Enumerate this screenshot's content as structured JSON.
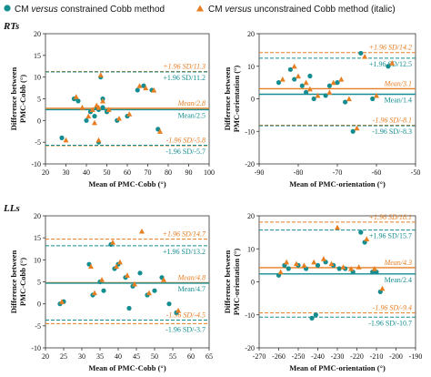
{
  "legend": {
    "teal": {
      "label": "CM versus constrained Cobb method",
      "parts": [
        "CM ",
        "versus",
        " constrained Cobb method"
      ]
    },
    "orange": {
      "label": "CM versus unconstrained Cobb method (italic)",
      "parts": [
        "CM ",
        "versus",
        " unconstrained Cobb method (italic)"
      ]
    }
  },
  "colors": {
    "teal": "#138d90",
    "orange": "#e67e22"
  },
  "chart_data": [
    {
      "type": "scatter",
      "group_label": "RTs",
      "xlabel": "Mean of PMC-Cobb (°)",
      "ylabel_lines": [
        "Difference between",
        "PMC-Cobb (°)"
      ],
      "xlim": [
        20,
        100
      ],
      "ylim": [
        -10,
        20
      ],
      "xticks": [
        "20",
        "30",
        "40",
        "50",
        "60",
        "70",
        "80",
        "90",
        "100"
      ],
      "yticks": [
        "-10",
        "-5",
        "0",
        "5",
        "10",
        "15",
        "20"
      ],
      "annotations": {
        "orange_upper": "+1.96 SD/11.3",
        "orange_mean": "Mean/2.8",
        "orange_lower": "-1.96 SD/-5.8",
        "teal_upper": "+1.96 SD/11.2",
        "teal_mean": "Mean/2.5",
        "teal_lower": "-1.96 SD/-5.7"
      },
      "lines": {
        "orange": {
          "upper": 11.3,
          "mean": 2.8,
          "lower": -5.8
        },
        "teal": {
          "upper": 11.2,
          "mean": 2.5,
          "lower": -5.7
        }
      },
      "series": [
        {
          "name": "CM versus constrained Cobb method",
          "color": "teal",
          "marker": "circle",
          "points": [
            [
              28,
              -4
            ],
            [
              34,
              5
            ],
            [
              36,
              4.5
            ],
            [
              40,
              0
            ],
            [
              42,
              2
            ],
            [
              44,
              1
            ],
            [
              45,
              3
            ],
            [
              46,
              2.5
            ],
            [
              47,
              10
            ],
            [
              48,
              5
            ],
            [
              46,
              -5
            ],
            [
              50,
              2
            ],
            [
              55,
              0
            ],
            [
              60,
              1
            ],
            [
              65,
              7
            ],
            [
              68,
              8
            ],
            [
              72,
              7
            ],
            [
              75,
              -2
            ],
            [
              48,
              3
            ]
          ]
        },
        {
          "name": "CM versus unconstrained Cobb method (italic)",
          "color": "orange",
          "marker": "triangle",
          "points": [
            [
              30,
              -4.5
            ],
            [
              35,
              5.5
            ],
            [
              38,
              3
            ],
            [
              41,
              1
            ],
            [
              43,
              2.5
            ],
            [
              45,
              3.5
            ],
            [
              46,
              3
            ],
            [
              47,
              10.5
            ],
            [
              48,
              4.5
            ],
            [
              46,
              -4.5
            ],
            [
              51,
              2.5
            ],
            [
              56,
              0.5
            ],
            [
              61,
              1.5
            ],
            [
              66,
              8
            ],
            [
              69,
              7.5
            ],
            [
              73,
              7
            ],
            [
              76,
              -2.5
            ],
            [
              44,
              -0.5
            ]
          ]
        }
      ]
    },
    {
      "type": "scatter",
      "group_label": "",
      "xlabel": "Mean of PMC-orientation (°)",
      "ylabel_lines": [
        "Difference between",
        "PMC-orientation (°)"
      ],
      "xlim": [
        -90,
        -50
      ],
      "ylim": [
        -20,
        20
      ],
      "xticks": [
        "-90",
        "-80",
        "-70",
        "-60",
        "-50"
      ],
      "yticks": [
        "-20",
        "-10",
        "0",
        "10",
        "20"
      ],
      "annotations": {
        "orange_upper": "+1.96 SD/14.2",
        "orange_mean": "Mean/3.1",
        "orange_lower": "-1.96 SD/-8.1",
        "teal_upper": "+1.96 SD/12.5",
        "teal_mean": "Mean/1.4",
        "teal_lower": "-1.96 SD/-8.3"
      },
      "lines": {
        "orange": {
          "upper": 14.2,
          "mean": 3.1,
          "lower": -8.1
        },
        "teal": {
          "upper": 12.5,
          "mean": 1.4,
          "lower": -8.3
        }
      },
      "series": [
        {
          "name": "CM versus constrained Cobb method",
          "color": "teal",
          "marker": "circle",
          "points": [
            [
              -85,
              5
            ],
            [
              -82,
              9
            ],
            [
              -81,
              6
            ],
            [
              -79,
              4
            ],
            [
              -78,
              2
            ],
            [
              -76,
              0
            ],
            [
              -73,
              1
            ],
            [
              -72,
              4
            ],
            [
              -70,
              5
            ],
            [
              -68,
              -1
            ],
            [
              -66,
              -10
            ],
            [
              -64,
              14
            ],
            [
              -61,
              0
            ],
            [
              -57,
              10
            ],
            [
              -77,
              7
            ]
          ]
        },
        {
          "name": "CM versus unconstrained Cobb method (italic)",
          "color": "orange",
          "marker": "triangle",
          "points": [
            [
              -84,
              6
            ],
            [
              -81,
              10
            ],
            [
              -80,
              7
            ],
            [
              -78,
              5
            ],
            [
              -77,
              3
            ],
            [
              -75,
              1
            ],
            [
              -72,
              2
            ],
            [
              -71,
              5
            ],
            [
              -69,
              6
            ],
            [
              -67,
              0
            ],
            [
              -65,
              -9
            ],
            [
              -63,
              13
            ],
            [
              -60,
              1
            ],
            [
              -56,
              11
            ]
          ]
        }
      ]
    },
    {
      "type": "scatter",
      "group_label": "LLs",
      "xlabel": "Mean of PMC-Cobb (°)",
      "ylabel_lines": [
        "Difference between",
        "PMC-Cobb (°)"
      ],
      "xlim": [
        20,
        65
      ],
      "ylim": [
        -10,
        20
      ],
      "xticks": [
        "20",
        "25",
        "30",
        "35",
        "40",
        "45",
        "50",
        "55",
        "60",
        "65"
      ],
      "yticks": [
        "-10",
        "-5",
        "0",
        "5",
        "10",
        "15",
        "20"
      ],
      "annotations": {
        "orange_upper": "+1.96 SD/14.7",
        "orange_mean": "Mean/4.8",
        "orange_lower": "-1.96 SD/-4.5",
        "teal_upper": "+1.96 SD/13.2",
        "teal_mean": "Mean/4.7",
        "teal_lower": "-1.96 SD/-3.7"
      },
      "lines": {
        "orange": {
          "upper": 14.7,
          "mean": 4.8,
          "lower": -4.5
        },
        "teal": {
          "upper": 13.2,
          "mean": 4.7,
          "lower": -3.7
        }
      },
      "series": [
        {
          "name": "CM versus constrained Cobb method",
          "color": "teal",
          "marker": "circle",
          "points": [
            [
              24,
              0
            ],
            [
              25,
              0.5
            ],
            [
              32,
              9
            ],
            [
              33,
              2
            ],
            [
              35,
              5
            ],
            [
              36,
              3
            ],
            [
              38,
              13.5
            ],
            [
              39,
              8
            ],
            [
              40,
              9
            ],
            [
              42,
              6
            ],
            [
              43,
              -1
            ],
            [
              44,
              4
            ],
            [
              46,
              7
            ],
            [
              48,
              2
            ],
            [
              50,
              3
            ],
            [
              52,
              6
            ],
            [
              54,
              0
            ],
            [
              56,
              -2
            ]
          ]
        },
        {
          "name": "CM versus unconstrained Cobb method (italic)",
          "color": "orange",
          "marker": "triangle",
          "points": [
            [
              24.5,
              0.5
            ],
            [
              32.5,
              8.5
            ],
            [
              33.5,
              2.5
            ],
            [
              35.5,
              5.5
            ],
            [
              38.5,
              14
            ],
            [
              39.5,
              8.5
            ],
            [
              40.5,
              9.5
            ],
            [
              42.5,
              6.5
            ],
            [
              44.5,
              4.5
            ],
            [
              46.5,
              16.5
            ],
            [
              48.5,
              2.5
            ],
            [
              52.5,
              5.5
            ],
            [
              56.5,
              -1.5
            ]
          ]
        }
      ]
    },
    {
      "type": "scatter",
      "group_label": "",
      "xlabel": "Mean of PMC-orientation (°)",
      "ylabel_lines": [
        "Difference between",
        "PMC-orientation (°)"
      ],
      "xlim": [
        -270,
        -190
      ],
      "ylim": [
        -20,
        20
      ],
      "xticks": [
        "-270",
        "-260",
        "-250",
        "-240",
        "-230",
        "-220",
        "-210",
        "-200",
        "-190"
      ],
      "yticks": [
        "-20",
        "-10",
        "0",
        "10",
        "20"
      ],
      "annotations": {
        "orange_upper": "+1.96 SD/18.1",
        "orange_mean": "Mean/4.3",
        "orange_lower": "-1.96 SD/-9.4",
        "teal_upper": "+1.96 SD/15.7",
        "teal_mean": "Mean/2.4",
        "teal_lower": "-1.96 SD/-10.7"
      },
      "lines": {
        "orange": {
          "upper": 18.1,
          "mean": 4.3,
          "lower": -9.4
        },
        "teal": {
          "upper": 15.7,
          "mean": 2.4,
          "lower": -10.7
        }
      },
      "series": [
        {
          "name": "CM versus constrained Cobb method",
          "color": "teal",
          "marker": "circle",
          "points": [
            [
              -260,
              2
            ],
            [
              -257,
              5
            ],
            [
              -255,
              4
            ],
            [
              -250,
              5
            ],
            [
              -246,
              4
            ],
            [
              -243,
              -11
            ],
            [
              -240,
              5
            ],
            [
              -236,
              6
            ],
            [
              -232,
              5
            ],
            [
              -229,
              4
            ],
            [
              -226,
              4
            ],
            [
              -222,
              3
            ],
            [
              -218,
              15
            ],
            [
              -216,
              12
            ],
            [
              -212,
              3
            ],
            [
              -210,
              3
            ],
            [
              -208,
              -3
            ],
            [
              -241,
              -10
            ]
          ]
        },
        {
          "name": "CM versus unconstrained Cobb method (italic)",
          "color": "orange",
          "marker": "triangle",
          "points": [
            [
              -259,
              3
            ],
            [
              -256,
              6
            ],
            [
              -251,
              5.5
            ],
            [
              -247,
              5
            ],
            [
              -242,
              6
            ],
            [
              -237,
              7
            ],
            [
              -233,
              5.5
            ],
            [
              -230,
              16.5
            ],
            [
              -227,
              4.5
            ],
            [
              -223,
              4
            ],
            [
              -219,
              4.5
            ],
            [
              -215,
              13
            ],
            [
              -211,
              4
            ],
            [
              -207,
              -2
            ]
          ]
        }
      ]
    }
  ]
}
